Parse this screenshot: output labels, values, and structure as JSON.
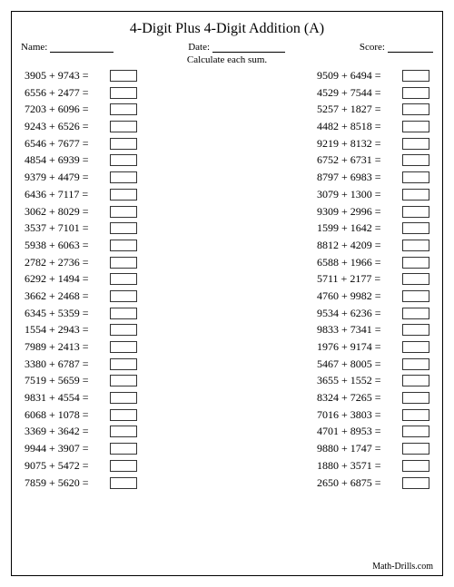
{
  "title": "4-Digit Plus 4-Digit Addition (A)",
  "header": {
    "name_label": "Name:",
    "date_label": "Date:",
    "score_label": "Score:"
  },
  "instruction": "Calculate each sum.",
  "footer": "Math-Drills.com",
  "colors": {
    "border": "#333333",
    "text": "#000000",
    "background": "#ffffff"
  },
  "typography": {
    "title_fontsize": 16,
    "body_fontsize": 12,
    "header_fontsize": 11
  },
  "layout": {
    "columns": 2,
    "rows_per_column": 25,
    "answer_box_width": 30,
    "answer_box_height": 13
  },
  "problems_left": [
    {
      "a": 3905,
      "b": 9743
    },
    {
      "a": 6556,
      "b": 2477
    },
    {
      "a": 7203,
      "b": 6096
    },
    {
      "a": 9243,
      "b": 6526
    },
    {
      "a": 6546,
      "b": 7677
    },
    {
      "a": 4854,
      "b": 6939
    },
    {
      "a": 9379,
      "b": 4479
    },
    {
      "a": 6436,
      "b": 7117
    },
    {
      "a": 3062,
      "b": 8029
    },
    {
      "a": 3537,
      "b": 7101
    },
    {
      "a": 5938,
      "b": 6063
    },
    {
      "a": 2782,
      "b": 2736
    },
    {
      "a": 6292,
      "b": 1494
    },
    {
      "a": 3662,
      "b": 2468
    },
    {
      "a": 6345,
      "b": 5359
    },
    {
      "a": 1554,
      "b": 2943
    },
    {
      "a": 7989,
      "b": 2413
    },
    {
      "a": 3380,
      "b": 6787
    },
    {
      "a": 7519,
      "b": 5659
    },
    {
      "a": 9831,
      "b": 4554
    },
    {
      "a": 6068,
      "b": 1078
    },
    {
      "a": 3369,
      "b": 3642
    },
    {
      "a": 9944,
      "b": 3907
    },
    {
      "a": 9075,
      "b": 5472
    },
    {
      "a": 7859,
      "b": 5620
    }
  ],
  "problems_right": [
    {
      "a": 9509,
      "b": 6494
    },
    {
      "a": 4529,
      "b": 7544
    },
    {
      "a": 5257,
      "b": 1827
    },
    {
      "a": 4482,
      "b": 8518
    },
    {
      "a": 9219,
      "b": 8132
    },
    {
      "a": 6752,
      "b": 6731
    },
    {
      "a": 8797,
      "b": 6983
    },
    {
      "a": 3079,
      "b": 1300
    },
    {
      "a": 9309,
      "b": 2996
    },
    {
      "a": 1599,
      "b": 1642
    },
    {
      "a": 8812,
      "b": 4209
    },
    {
      "a": 6588,
      "b": 1966
    },
    {
      "a": 5711,
      "b": 2177
    },
    {
      "a": 4760,
      "b": 9982
    },
    {
      "a": 9534,
      "b": 6236
    },
    {
      "a": 9833,
      "b": 7341
    },
    {
      "a": 1976,
      "b": 9174
    },
    {
      "a": 5467,
      "b": 8005
    },
    {
      "a": 3655,
      "b": 1552
    },
    {
      "a": 8324,
      "b": 7265
    },
    {
      "a": 7016,
      "b": 3803
    },
    {
      "a": 4701,
      "b": 8953
    },
    {
      "a": 9880,
      "b": 1747
    },
    {
      "a": 1880,
      "b": 3571
    },
    {
      "a": 2650,
      "b": 6875
    }
  ]
}
